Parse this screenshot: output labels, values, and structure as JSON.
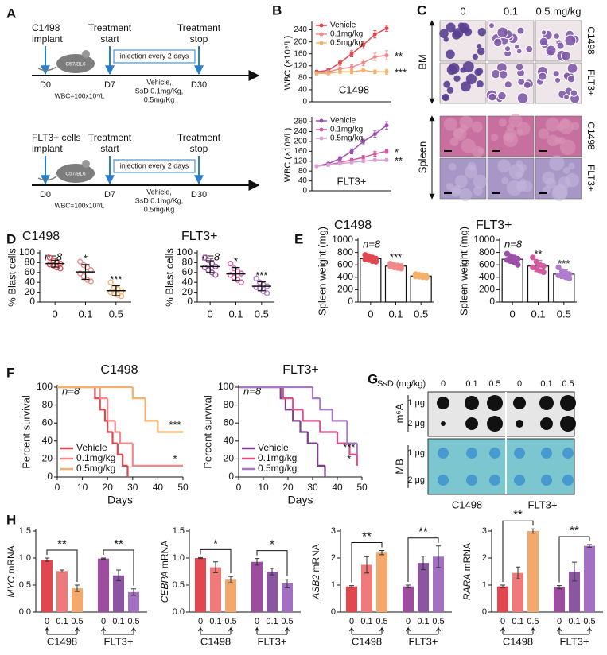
{
  "panel_labels": [
    "A",
    "B",
    "C",
    "D",
    "E",
    "F",
    "G",
    "H"
  ],
  "timelines": [
    {
      "implant": [
        "C1498",
        "implant"
      ],
      "start": [
        "Treatment",
        "start"
      ],
      "stop": [
        "Treatment",
        "stop"
      ],
      "days": [
        "D0",
        "D7",
        "D30"
      ],
      "injection": "injection every 2 days",
      "treatment": [
        "Vehicle,",
        "SsD 0.1mg/Kg,",
        "0.5mg/Kg"
      ],
      "wbc": "WBC=100x10⁷/L",
      "mouse": "C57/BL6"
    },
    {
      "implant": [
        "FLT3+ cells",
        "implant"
      ],
      "start": [
        "Treatment",
        "start"
      ],
      "stop": [
        "Treatment",
        "stop"
      ],
      "days": [
        "D0",
        "D7",
        "D30"
      ],
      "injection": "injection every 2 days",
      "treatment": [
        "Vehicle,",
        "SsD 0.1mg/Kg,",
        "0.5mg/Kg"
      ],
      "wbc": "WBC=100x10⁷/L",
      "mouse": "C57/BL6"
    }
  ],
  "micrographs": {
    "doses": [
      "0",
      "0.1",
      "0.5 mg/kg"
    ],
    "tissues": [
      "BM",
      "Spleen"
    ],
    "rows": [
      "C1498",
      "FLT3+",
      "C1498",
      "FLT3+"
    ]
  },
  "dot_blot": {
    "header": "SsD (mg/kg)",
    "doses": [
      "0",
      "0.1",
      "0.5",
      "0",
      "0.1",
      "0.5"
    ],
    "stains": [
      "m⁶A",
      "MB"
    ],
    "amounts": [
      "1 μg",
      "2 μg"
    ],
    "cell_lines": [
      "C1498",
      "FLT3+"
    ]
  },
  "chart_data": [
    {
      "type": "line",
      "title": "C1498",
      "ylabel": "WBC (×10⁹/L)",
      "categories": [
        null,
        null,
        null,
        null,
        null,
        null,
        null
      ],
      "ylim": [
        0,
        260
      ],
      "yticks": [
        0,
        40,
        80,
        120,
        160,
        200,
        240
      ],
      "series": [
        {
          "name": "Vehicle",
          "color": "#e0474f",
          "values": [
            100,
            105,
            130,
            160,
            190,
            225,
            245
          ],
          "errors": [
            5,
            5,
            8,
            10,
            12,
            12,
            10
          ]
        },
        {
          "name": "0.1mg/kg",
          "color": "#f08a8a",
          "values": [
            95,
            100,
            110,
            115,
            130,
            150,
            155
          ],
          "errors": [
            5,
            5,
            6,
            8,
            10,
            12,
            15
          ],
          "annotation": "**"
        },
        {
          "name": "0.5mg/kg",
          "color": "#f5b06b",
          "values": [
            95,
            95,
            100,
            100,
            105,
            100,
            100
          ],
          "errors": [
            4,
            5,
            5,
            6,
            6,
            6,
            8
          ],
          "annotation": "***"
        }
      ]
    },
    {
      "type": "line",
      "title": "FLT3+",
      "ylabel": "WBC (×10⁹/L)",
      "categories": [
        null,
        null,
        null,
        null,
        null,
        null,
        null
      ],
      "ylim": [
        0,
        290
      ],
      "yticks": [
        0,
        40,
        80,
        120,
        160,
        200,
        240,
        280
      ],
      "series": [
        {
          "name": "Vehicle",
          "color": "#9b4fa8",
          "values": [
            100,
            110,
            130,
            160,
            200,
            230,
            265
          ],
          "errors": [
            4,
            5,
            8,
            10,
            10,
            12,
            15
          ]
        },
        {
          "name": "0.1mg/kg",
          "color": "#d35a9e",
          "values": [
            100,
            105,
            115,
            125,
            135,
            150,
            160
          ],
          "errors": [
            4,
            5,
            5,
            6,
            8,
            10,
            8
          ],
          "annotation": "*"
        },
        {
          "name": "0.5mg/kg",
          "color": "#d9a0d6",
          "values": [
            100,
            105,
            110,
            115,
            120,
            125,
            125
          ],
          "errors": [
            3,
            4,
            5,
            5,
            6,
            6,
            5
          ],
          "annotation": "**"
        }
      ]
    },
    {
      "type": "dot",
      "title": "C1498",
      "n_label": "n=8",
      "ylabel": "% Blast cells",
      "categories": [
        "0",
        "0.1",
        "0.5"
      ],
      "ylim": [
        0,
        100
      ],
      "yticks": [
        0,
        20,
        40,
        60,
        80,
        100
      ],
      "colors": [
        "#e0474f",
        "#f08a8a",
        "#f5b06b"
      ],
      "means": [
        78,
        61,
        23
      ],
      "sd": [
        7,
        15,
        10
      ],
      "points": [
        [
          90,
          85,
          80,
          78,
          76,
          74,
          70,
          68
        ],
        [
          82,
          75,
          70,
          65,
          58,
          52,
          45,
          42
        ],
        [
          40,
          30,
          26,
          22,
          20,
          18,
          14,
          12
        ]
      ],
      "significance": [
        null,
        "*",
        "***"
      ]
    },
    {
      "type": "dot",
      "title": "FLT3+",
      "n_label": "n=8",
      "ylabel": "% Blast cells",
      "categories": [
        "0",
        "0.1",
        "0.5"
      ],
      "ylim": [
        0,
        100
      ],
      "yticks": [
        0,
        20,
        40,
        60,
        80,
        100
      ],
      "colors": [
        "#9b4fa8",
        "#d35a9e",
        "#b07ccc"
      ],
      "means": [
        72,
        57,
        32
      ],
      "sd": [
        12,
        13,
        9
      ],
      "points": [
        [
          90,
          85,
          78,
          72,
          70,
          65,
          60,
          55
        ],
        [
          78,
          68,
          62,
          58,
          55,
          50,
          45,
          40
        ],
        [
          48,
          40,
          35,
          32,
          30,
          28,
          22,
          18
        ]
      ],
      "significance": [
        null,
        "*",
        "***"
      ]
    },
    {
      "type": "bar",
      "title": "C1498",
      "n_label": "n=8",
      "ylabel": "Spleen weight (mg)",
      "categories": [
        "0",
        "0.1",
        "0.5"
      ],
      "ylim": [
        0,
        1000
      ],
      "yticks": [
        0,
        200,
        400,
        600,
        800,
        1000
      ],
      "colors": [
        "#e0474f",
        "#f08a8a",
        "#f5b06b"
      ],
      "means": [
        700,
        580,
        420
      ],
      "sd": [
        50,
        40,
        25
      ],
      "points": [
        [
          760,
          740,
          720,
          700,
          690,
          680,
          660,
          650
        ],
        [
          620,
          600,
          590,
          580,
          575,
          560,
          550,
          540
        ],
        [
          450,
          440,
          430,
          420,
          415,
          410,
          400,
          395
        ]
      ],
      "significance": [
        null,
        "***",
        null
      ]
    },
    {
      "type": "bar",
      "title": "FLT3+",
      "n_label": "n=8",
      "ylabel": "Spleen weight (mg)",
      "categories": [
        "0",
        "0.1",
        "0.5"
      ],
      "ylim": [
        0,
        1000
      ],
      "yticks": [
        0,
        200,
        400,
        600,
        800,
        1000
      ],
      "colors": [
        "#9b4fa8",
        "#d35a9e",
        "#b07ccc"
      ],
      "means": [
        690,
        580,
        450
      ],
      "sd": [
        60,
        90,
        70
      ],
      "points": [
        [
          780,
          740,
          720,
          700,
          680,
          660,
          640,
          600
        ],
        [
          720,
          650,
          600,
          580,
          560,
          540,
          500,
          480
        ],
        [
          560,
          500,
          470,
          450,
          430,
          420,
          400,
          380
        ]
      ],
      "significance": [
        null,
        "**",
        "***"
      ]
    },
    {
      "type": "survival",
      "title": "C1498",
      "n_label": "n=8",
      "xlabel": "Days",
      "ylabel": "Percent survival",
      "xlim": [
        0,
        50
      ],
      "xticks": [
        0,
        10,
        20,
        30,
        40,
        50
      ],
      "ylim": [
        0,
        100
      ],
      "yticks": [
        0,
        20,
        40,
        60,
        80,
        100
      ],
      "series": [
        {
          "name": "Vehicle",
          "color": "#e0474f",
          "x": [
            0,
            15,
            17,
            19,
            20,
            22,
            24,
            26,
            28
          ],
          "y": [
            100,
            87.5,
            75,
            62.5,
            50,
            37.5,
            25,
            12.5,
            0
          ]
        },
        {
          "name": "0.1mg/kg",
          "color": "#f08a8a",
          "x": [
            0,
            17,
            20,
            23,
            25,
            30,
            50
          ],
          "y": [
            100,
            87.5,
            62.5,
            50,
            37.5,
            12.5,
            12.5
          ],
          "annotation": "*"
        },
        {
          "name": "0.5mg/kg",
          "color": "#f5b06b",
          "x": [
            0,
            30,
            35,
            40,
            50
          ],
          "y": [
            100,
            87.5,
            62.5,
            50,
            50
          ],
          "annotation": "***"
        }
      ]
    },
    {
      "type": "survival",
      "title": "FLT3+",
      "n_label": "n=8",
      "xlabel": "Days",
      "ylabel": "Percent survival",
      "xlim": [
        0,
        50
      ],
      "xticks": [
        0,
        10,
        20,
        30,
        40,
        50
      ],
      "ylim": [
        0,
        100
      ],
      "yticks": [
        0,
        20,
        40,
        60,
        80,
        100
      ],
      "series": [
        {
          "name": "Vehicle",
          "color": "#7b3f8c",
          "x": [
            0,
            17,
            19,
            22,
            25,
            28,
            32,
            35
          ],
          "y": [
            100,
            87.5,
            75,
            62.5,
            50,
            37.5,
            12.5,
            0
          ]
        },
        {
          "name": "0.1mg/kg",
          "color": "#d94f8a",
          "x": [
            0,
            18,
            22,
            26,
            33,
            40,
            45,
            48
          ],
          "y": [
            100,
            87.5,
            75,
            62.5,
            50,
            37.5,
            25,
            12.5
          ],
          "annotation": "*"
        },
        {
          "name": "0.5mg/kg",
          "color": "#a678c2",
          "x": [
            0,
            30,
            33,
            38,
            44,
            48
          ],
          "y": [
            100,
            87.5,
            75,
            62.5,
            37.5,
            25
          ],
          "annotation": "***"
        }
      ]
    },
    {
      "type": "grouped_bar",
      "gene": "MYC",
      "ylabel": "mRNA",
      "categories": [
        "0",
        "0.1",
        "0.5",
        "0",
        "0.1",
        "0.5"
      ],
      "groups": [
        "C1498",
        "FLT3+"
      ],
      "values": [
        0.97,
        0.76,
        0.44,
        0.99,
        0.68,
        0.37
      ],
      "errors": [
        0.03,
        0.02,
        0.06,
        0.01,
        0.1,
        0.06
      ],
      "colors": [
        "#e0474f",
        "#f07a7a",
        "#f5a86b",
        "#9e4c9f",
        "#8c55a3",
        "#a26fc2"
      ],
      "ylim": [
        0,
        1.5
      ],
      "yticks": [
        {
          "value": 0,
          "label": "0.0"
        },
        0.5,
        {
          "value": 1,
          "label": "1.0"
        },
        1.5
      ],
      "brackets": [
        "**",
        "**"
      ]
    },
    {
      "type": "grouped_bar",
      "gene": "CEBPA",
      "ylabel": "mRNA",
      "categories": [
        "0",
        "0.1",
        "0.5",
        "0",
        "0.1",
        "0.5"
      ],
      "groups": [
        "C1498",
        "FLT3+"
      ],
      "values": [
        1.0,
        0.83,
        0.6,
        0.93,
        0.75,
        0.53
      ],
      "errors": [
        0.01,
        0.1,
        0.06,
        0.06,
        0.06,
        0.08
      ],
      "colors": [
        "#e0474f",
        "#f07a7a",
        "#f5a86b",
        "#9e4c9f",
        "#8c55a3",
        "#a26fc2"
      ],
      "ylim": [
        0,
        1.5
      ],
      "yticks": [
        {
          "value": 0,
          "label": "0.0"
        },
        0.5,
        {
          "value": 1,
          "label": "1.0"
        },
        1.5
      ],
      "brackets": [
        "*",
        "*"
      ]
    },
    {
      "type": "grouped_bar",
      "gene": "ASB2",
      "ylabel": "mRNA",
      "categories": [
        "0",
        "0.1",
        "0.5",
        "0",
        "0.1",
        "0.5"
      ],
      "groups": [
        "C1498",
        "FLT3+"
      ],
      "values": [
        0.95,
        1.75,
        2.2,
        0.95,
        1.82,
        2.05
      ],
      "errors": [
        0.03,
        0.3,
        0.08,
        0.05,
        0.25,
        0.4
      ],
      "colors": [
        "#e0474f",
        "#f07a7a",
        "#f5a86b",
        "#9e4c9f",
        "#8c55a3",
        "#a26fc2"
      ],
      "ylim": [
        0,
        3
      ],
      "yticks": [
        0,
        1,
        2,
        3
      ],
      "brackets": [
        "**",
        "**"
      ]
    },
    {
      "type": "grouped_bar",
      "gene": "RARA",
      "ylabel": "mRNA",
      "categories": [
        "0",
        "0.1",
        "0.5",
        "0",
        "0.1",
        "0.5"
      ],
      "groups": [
        "C1498",
        "FLT3+"
      ],
      "values": [
        0.95,
        1.45,
        3.0,
        0.92,
        1.5,
        2.45
      ],
      "errors": [
        0.05,
        0.22,
        0.08,
        0.06,
        0.35,
        0.05
      ],
      "colors": [
        "#e0474f",
        "#f07a7a",
        "#f5a86b",
        "#9e4c9f",
        "#8c55a3",
        "#a26fc2"
      ],
      "ylim": [
        0,
        3
      ],
      "yticks": [
        0,
        1,
        2,
        3
      ],
      "brackets": [
        "**",
        "**"
      ]
    }
  ]
}
